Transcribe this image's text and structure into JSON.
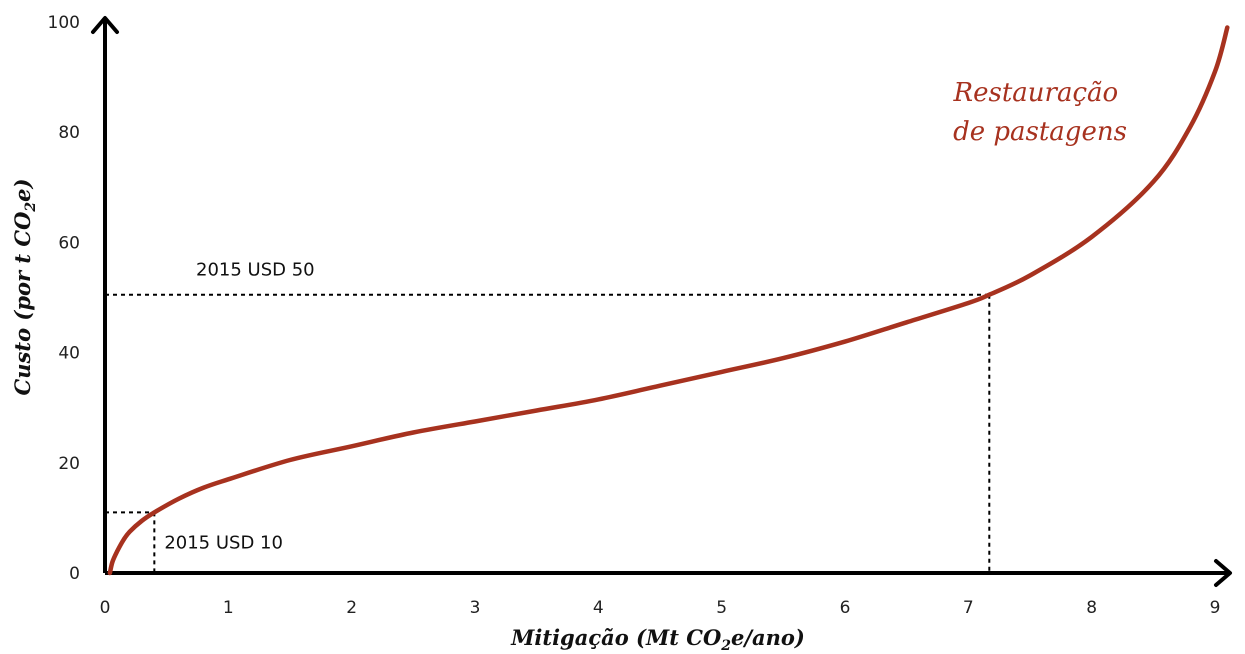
{
  "chart_data": {
    "type": "line",
    "xlabel": {
      "main": "Mitigação (Mt CO",
      "sub": "2",
      "rest": "e/ano)"
    },
    "ylabel": {
      "main": "Custo (por t CO",
      "sub": "2",
      "rest": "e)"
    },
    "xlim": [
      0,
      9
    ],
    "ylim": [
      0,
      100
    ],
    "x_ticks": [
      "0",
      "1",
      "2",
      "3",
      "4",
      "5",
      "6",
      "7",
      "8",
      "9"
    ],
    "y_ticks": [
      "0",
      "20",
      "40",
      "60",
      "80",
      "100"
    ],
    "grid": false,
    "series": [
      {
        "name": "Restauração de pastagens",
        "name_lines": [
          "Restauração",
          "de pastagens"
        ],
        "color": "#A7321F",
        "x": [
          0.04,
          0.06,
          0.1,
          0.15,
          0.2,
          0.3,
          0.4,
          0.6,
          0.8,
          1.0,
          1.5,
          2.0,
          2.5,
          3.0,
          3.5,
          4.0,
          4.5,
          5.0,
          5.5,
          6.0,
          6.5,
          7.0,
          7.17,
          7.5,
          8.0,
          8.5,
          8.8,
          9.0,
          9.1
        ],
        "y": [
          0,
          2,
          4,
          6,
          7.5,
          9.5,
          11,
          13.5,
          15.5,
          17,
          20.5,
          23,
          25.5,
          27.5,
          29.5,
          31.5,
          34,
          36.5,
          39,
          42,
          45.5,
          49,
          50.5,
          54,
          61,
          71,
          81,
          91,
          99
        ]
      }
    ],
    "annotations": [
      {
        "text": "2015 USD 10",
        "x": 0.4,
        "y": 11
      },
      {
        "text": "2015 USD 50",
        "x": 7.17,
        "y": 50.5
      }
    ]
  }
}
